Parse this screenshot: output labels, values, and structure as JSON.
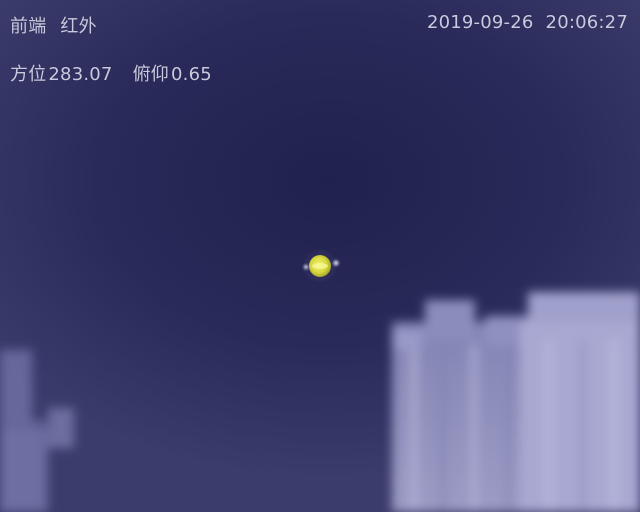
{
  "osd": {
    "source": "前端",
    "mode": "红外",
    "date": "2019-09-26",
    "time": "20:06:27",
    "azimuth_label": "方位",
    "azimuth_value": "283.07",
    "pitch_label": "俯仰",
    "pitch_value": "0.65"
  },
  "colors": {
    "sky_center": "#21214d",
    "sky_edge": "#3c3c6c",
    "osd_text": "#c9c9e0",
    "target": "#d8d840",
    "buildings": "#9c9cc8"
  }
}
